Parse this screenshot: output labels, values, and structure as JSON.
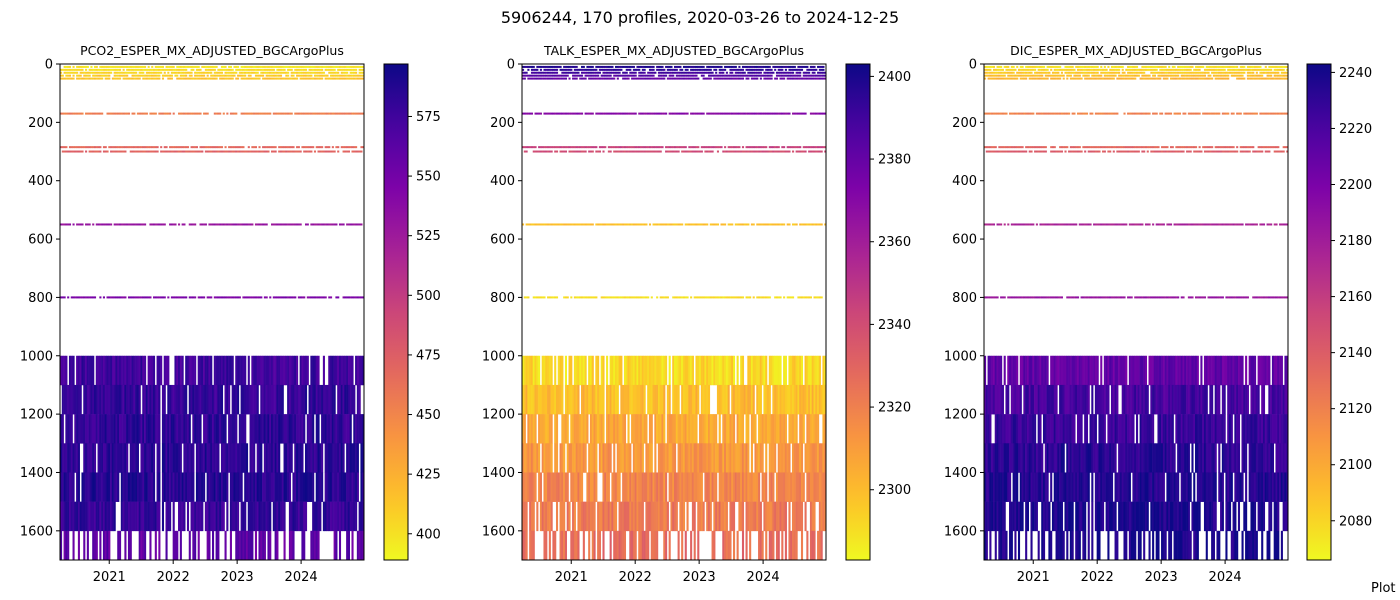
{
  "figure": {
    "title": "5906244, 170 profiles, 2020-03-26 to 2024-12-25",
    "footer": "Plot"
  },
  "chart_data": [
    {
      "type": "heatmap",
      "title": "PCO2_ESPER_MX_ADJUSTED_BGCArgoPlus",
      "xlabel": "",
      "ylabel": "",
      "x_range": [
        "2020-03-26",
        "2024-12-25"
      ],
      "x_ticks": [
        "2021",
        "2022",
        "2023",
        "2024"
      ],
      "y_range": [
        1700,
        0
      ],
      "y_ticks": [
        0,
        200,
        400,
        600,
        800,
        1000,
        1200,
        1400,
        1600
      ],
      "colorbar": {
        "range": [
          389,
          597
        ],
        "ticks": [
          400,
          425,
          450,
          475,
          500,
          525,
          550,
          575
        ],
        "colormap": "plasma_r"
      },
      "levels": [
        {
          "depth": 10,
          "value": 398
        },
        {
          "depth": 20,
          "value": 402
        },
        {
          "depth": 30,
          "value": 406
        },
        {
          "depth": 40,
          "value": 410
        },
        {
          "depth": 50,
          "value": 414
        },
        {
          "depth": 170,
          "value": 455
        },
        {
          "depth": 285,
          "value": 468
        },
        {
          "depth": 300,
          "value": 472
        },
        {
          "depth": 550,
          "value": 530
        },
        {
          "depth": 800,
          "value": 545
        },
        {
          "depth": 1000,
          "value": 575
        },
        {
          "depth": 1100,
          "value": 580
        },
        {
          "depth": 1200,
          "value": 582
        },
        {
          "depth": 1300,
          "value": 584
        },
        {
          "depth": 1400,
          "value": 586
        },
        {
          "depth": 1500,
          "value": 580
        },
        {
          "depth": 1600,
          "value": 560
        }
      ]
    },
    {
      "type": "heatmap",
      "title": "TALK_ESPER_MX_ADJUSTED_BGCArgoPlus",
      "xlabel": "",
      "ylabel": "",
      "x_range": [
        "2020-03-26",
        "2024-12-25"
      ],
      "x_ticks": [
        "2021",
        "2022",
        "2023",
        "2024"
      ],
      "y_range": [
        1700,
        0
      ],
      "y_ticks": [
        0,
        200,
        400,
        600,
        800,
        1000,
        1200,
        1400,
        1600
      ],
      "colorbar": {
        "range": [
          2283,
          2403
        ],
        "ticks": [
          2300,
          2320,
          2340,
          2360,
          2380,
          2400
        ],
        "colormap": "plasma_r"
      },
      "levels": [
        {
          "depth": 10,
          "value": 2398
        },
        {
          "depth": 20,
          "value": 2395
        },
        {
          "depth": 30,
          "value": 2390
        },
        {
          "depth": 40,
          "value": 2385
        },
        {
          "depth": 50,
          "value": 2380
        },
        {
          "depth": 170,
          "value": 2370
        },
        {
          "depth": 285,
          "value": 2345
        },
        {
          "depth": 300,
          "value": 2340
        },
        {
          "depth": 550,
          "value": 2298
        },
        {
          "depth": 800,
          "value": 2290
        },
        {
          "depth": 1000,
          "value": 2292
        },
        {
          "depth": 1100,
          "value": 2300
        },
        {
          "depth": 1200,
          "value": 2306
        },
        {
          "depth": 1300,
          "value": 2312
        },
        {
          "depth": 1400,
          "value": 2318
        },
        {
          "depth": 1500,
          "value": 2322
        },
        {
          "depth": 1600,
          "value": 2326
        }
      ]
    },
    {
      "type": "heatmap",
      "title": "DIC_ESPER_MX_ADJUSTED_BGCArgoPlus",
      "xlabel": "",
      "ylabel": "",
      "x_range": [
        "2020-03-26",
        "2024-12-25"
      ],
      "x_ticks": [
        "2021",
        "2022",
        "2023",
        "2024"
      ],
      "y_range": [
        1700,
        0
      ],
      "y_ticks": [
        0,
        200,
        400,
        600,
        800,
        1000,
        1200,
        1400,
        1600
      ],
      "colorbar": {
        "range": [
          2066,
          2243
        ],
        "ticks": [
          2080,
          2100,
          2120,
          2140,
          2160,
          2180,
          2200,
          2220,
          2240
        ],
        "colormap": "plasma_r"
      },
      "levels": [
        {
          "depth": 10,
          "value": 2075
        },
        {
          "depth": 20,
          "value": 2080
        },
        {
          "depth": 30,
          "value": 2085
        },
        {
          "depth": 40,
          "value": 2090
        },
        {
          "depth": 50,
          "value": 2095
        },
        {
          "depth": 170,
          "value": 2120
        },
        {
          "depth": 285,
          "value": 2135
        },
        {
          "depth": 300,
          "value": 2140
        },
        {
          "depth": 550,
          "value": 2175
        },
        {
          "depth": 800,
          "value": 2185
        },
        {
          "depth": 1000,
          "value": 2210
        },
        {
          "depth": 1100,
          "value": 2222
        },
        {
          "depth": 1200,
          "value": 2228
        },
        {
          "depth": 1300,
          "value": 2232
        },
        {
          "depth": 1400,
          "value": 2236
        },
        {
          "depth": 1500,
          "value": 2238
        },
        {
          "depth": 1600,
          "value": 2238
        }
      ]
    }
  ]
}
